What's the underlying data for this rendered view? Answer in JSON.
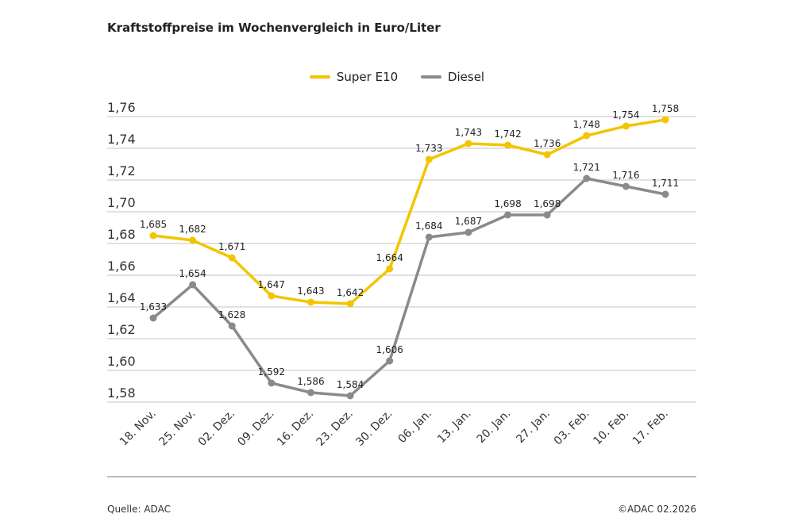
{
  "title": "Kraftstoffpreise im Wochenvergleich in Euro/Liter",
  "footer": {
    "source": "Quelle: ADAC",
    "copyright": "©ADAC 02.2026"
  },
  "chart_data": {
    "type": "line",
    "title": "Kraftstoffpreise im Wochenvergleich in Euro/Liter",
    "categories": [
      "18. Nov.",
      "25. Nov.",
      "02. Dez.",
      "09. Dez.",
      "16. Dez.",
      "23. Dez.",
      "30. Dez.",
      "06. Jan.",
      "13. Jan.",
      "20. Jan.",
      "27. Jan.",
      "03. Feb.",
      "10. Feb.",
      "17. Feb."
    ],
    "series": [
      {
        "name": "Super E10",
        "color": "#f2c500",
        "values": [
          1.685,
          1.682,
          1.671,
          1.647,
          1.643,
          1.642,
          1.664,
          1.733,
          1.743,
          1.742,
          1.736,
          1.748,
          1.754,
          1.758
        ],
        "labels": [
          "1,685",
          "1,682",
          "1,671",
          "1,647",
          "1,643",
          "1,642",
          "1,664",
          "1,733",
          "1,743",
          "1,742",
          "1,736",
          "1,748",
          "1,754",
          "1,758"
        ]
      },
      {
        "name": "Diesel",
        "color": "#8a8a8a",
        "values": [
          1.633,
          1.654,
          1.628,
          1.592,
          1.586,
          1.584,
          1.606,
          1.684,
          1.687,
          1.698,
          1.698,
          1.721,
          1.716,
          1.711
        ],
        "labels": [
          "1,633",
          "1,654",
          "1,628",
          "1,592",
          "1,586",
          "1,584",
          "1,606",
          "1,684",
          "1,687",
          "1,698",
          "1,698",
          "1,721",
          "1,716",
          "1,711"
        ]
      }
    ],
    "yticks": [
      1.58,
      1.6,
      1.62,
      1.64,
      1.66,
      1.68,
      1.7,
      1.72,
      1.74,
      1.76
    ],
    "ytick_labels": [
      "1,58",
      "1,60",
      "1,62",
      "1,64",
      "1,66",
      "1,68",
      "1,70",
      "1,72",
      "1,74",
      "1,76"
    ],
    "ylim": [
      1.58,
      1.76
    ],
    "grid": true,
    "legend": "top-center",
    "xlabel": "",
    "ylabel": ""
  }
}
